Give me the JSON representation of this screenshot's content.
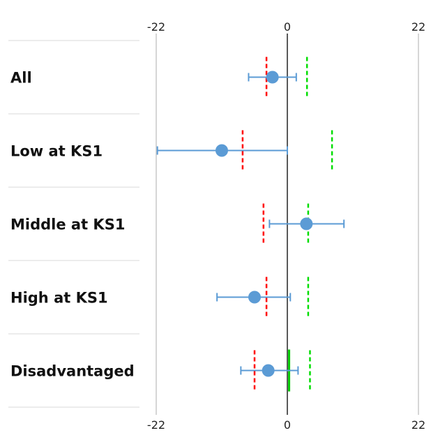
{
  "chart_data": {
    "type": "scatter",
    "title": "",
    "xlabel": "",
    "ylabel": "",
    "xlim": [
      -22,
      22
    ],
    "x_ticks": [
      -22,
      0,
      22
    ],
    "x_tick_labels": [
      "-22",
      "0",
      "22"
    ],
    "grid": "vertical lines at ticks; horizontal separators between rows",
    "colors": {
      "point": "#5b9bd5",
      "error_bar": "#5b9bd5",
      "red_dashed": "#ff0000",
      "green_dashed": "#00dd00",
      "green_solid": "#00cc00",
      "axis": "#000000",
      "grid": "#999999"
    },
    "categories": [
      "All",
      "Low at KS1",
      "Middle at KS1",
      "High at KS1",
      "Disadvantaged"
    ],
    "series": [
      {
        "kind": "point_with_error",
        "estimate": [
          -2.5,
          -11,
          3.2,
          -5.5,
          -3.2
        ],
        "ci_low": [
          -6.5,
          -21.8,
          -3,
          -11.8,
          -7.8
        ],
        "ci_high": [
          1.5,
          0,
          9.5,
          0.5,
          1.8
        ]
      },
      {
        "kind": "dashed_marker",
        "color": "red",
        "values": [
          -3.5,
          -7.5,
          -4,
          -3.5,
          -5.5
        ]
      },
      {
        "kind": "dashed_marker",
        "color": "green",
        "values": [
          3.3,
          7.5,
          3.5,
          3.5,
          3.8
        ]
      },
      {
        "kind": "solid_marker",
        "color": "green",
        "values": [
          null,
          null,
          null,
          null,
          0.3
        ]
      }
    ]
  }
}
